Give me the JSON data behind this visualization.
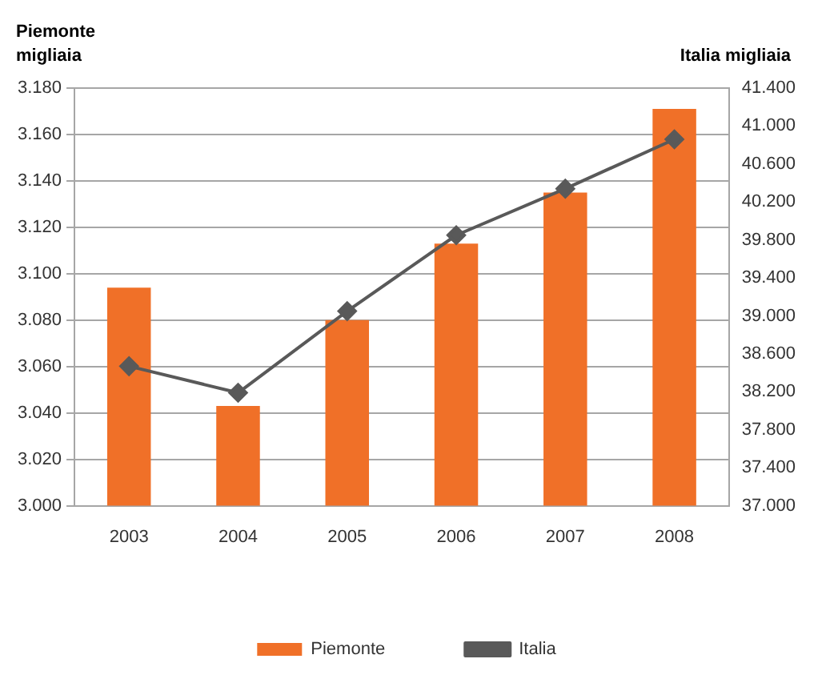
{
  "chart_data": {
    "type": "bar",
    "ylabel": "Piemonte migliaia",
    "y2label": "Italia migliaia",
    "categories": [
      "2003",
      "2004",
      "2005",
      "2006",
      "2007",
      "2008"
    ],
    "series": [
      {
        "name": "Piemonte",
        "color": "#f07028",
        "values": [
          3094,
          3043,
          3080,
          3113,
          3135,
          3171
        ]
      },
      {
        "name": "Italia",
        "type": "line",
        "axis": "y2",
        "color": "#595959",
        "marker": "diamond",
        "line_style": "solid",
        "values": [
          38470,
          38190,
          39050,
          39850,
          40340,
          40860
        ]
      }
    ],
    "ylim": [
      3000,
      3180
    ],
    "yticks": [
      {
        "value": 3000,
        "label": "3.000"
      },
      {
        "value": 3020,
        "label": "3.020"
      },
      {
        "value": 3040,
        "label": "3.040"
      },
      {
        "value": 3060,
        "label": "3.060"
      },
      {
        "value": 3080,
        "label": "3.080"
      },
      {
        "value": 3100,
        "label": "3.100"
      },
      {
        "value": 3120,
        "label": "3.120"
      },
      {
        "value": 3140,
        "label": "3.140"
      },
      {
        "value": 3160,
        "label": "3.160"
      },
      {
        "value": 3180,
        "label": "3.180"
      }
    ],
    "y2lim": [
      37000,
      41400
    ],
    "y2ticks": [
      {
        "value": 37000,
        "label": "37.000"
      },
      {
        "value": 37400,
        "label": "37.400"
      },
      {
        "value": 37800,
        "label": "37.800"
      },
      {
        "value": 38200,
        "label": "38.200"
      },
      {
        "value": 38600,
        "label": "38.600"
      },
      {
        "value": 39000,
        "label": "39.000"
      },
      {
        "value": 39400,
        "label": "39.400"
      },
      {
        "value": 39800,
        "label": "39.800"
      },
      {
        "value": 40200,
        "label": "40.200"
      },
      {
        "value": 40600,
        "label": "40.600"
      },
      {
        "value": 41000,
        "label": "41.000"
      },
      {
        "value": 41400,
        "label": "41.400"
      }
    ],
    "grid": "y",
    "legend": "bottom"
  }
}
